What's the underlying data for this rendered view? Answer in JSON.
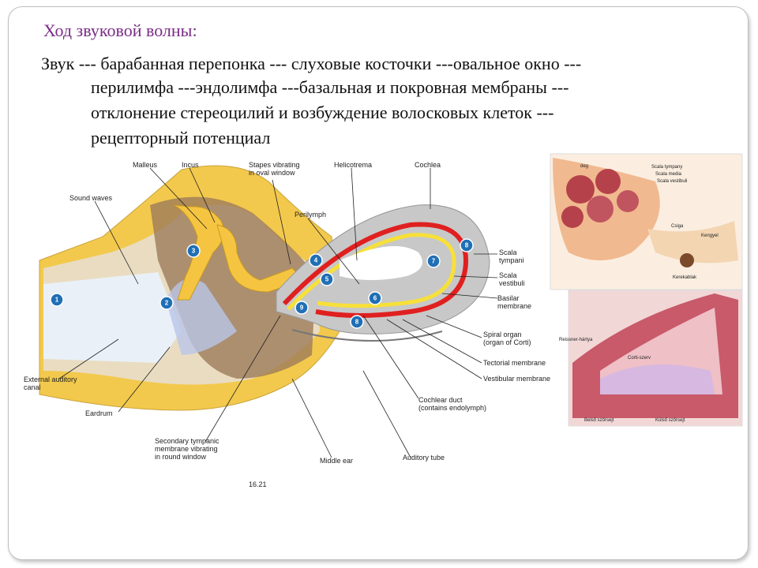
{
  "title": "Ход звуковой волны:",
  "body": [
    "Звук --- барабанная перепонка --- слуховые косточки ---овальное окно ---",
    "перилимфа ---эндолимфа ---базальная и покровная мембраны ---",
    "отклонение стереоцилий и возбуждение волосковых клеток ---",
    "рецепторный потенциал"
  ],
  "diagram": {
    "labels": {
      "malleus": "Malleus",
      "incus": "Incus",
      "stapes": [
        "Stapes vibrating",
        "in oval window"
      ],
      "helicotrema": "Helicotrema",
      "cochlea": "Cochlea",
      "sound_waves": "Sound waves",
      "perilymph": "Perilymph",
      "scala_tympani": [
        "Scala",
        "tympani"
      ],
      "scala_vestibuli": [
        "Scala",
        "vestibuli"
      ],
      "basilar": [
        "Basilar",
        "membrane"
      ],
      "spiral_organ": [
        "Spiral organ",
        "(organ of Corti)"
      ],
      "tectorial": "Tectorial membrane",
      "vestibular": "Vestibular membrane",
      "cochlear_duct": [
        "Cochlear duct",
        "(contains endolymph)"
      ],
      "external_canal": [
        "External auditory",
        "canal"
      ],
      "eardrum": "Eardrum",
      "secondary": [
        "Secondary tympanic",
        "membrane vibrating",
        "in round window"
      ],
      "middle_ear": "Middle ear",
      "auditory_tube": "Auditory tube",
      "figure": "16.21"
    },
    "steps": [
      "1",
      "2",
      "3",
      "4",
      "5",
      "6",
      "7",
      "8",
      "9",
      "8"
    ]
  },
  "inset_top": {
    "labels": [
      "deg",
      "Scala tympany",
      "Scala media",
      "Scala vestibuli",
      "Csiga",
      "Kengyel",
      "Kerekablak"
    ]
  },
  "inset_bottom": {
    "labels": [
      "Reissner-hártya",
      "Corti-szerv",
      "Belső szőrsejt",
      "Külső szőrsejt"
    ]
  }
}
